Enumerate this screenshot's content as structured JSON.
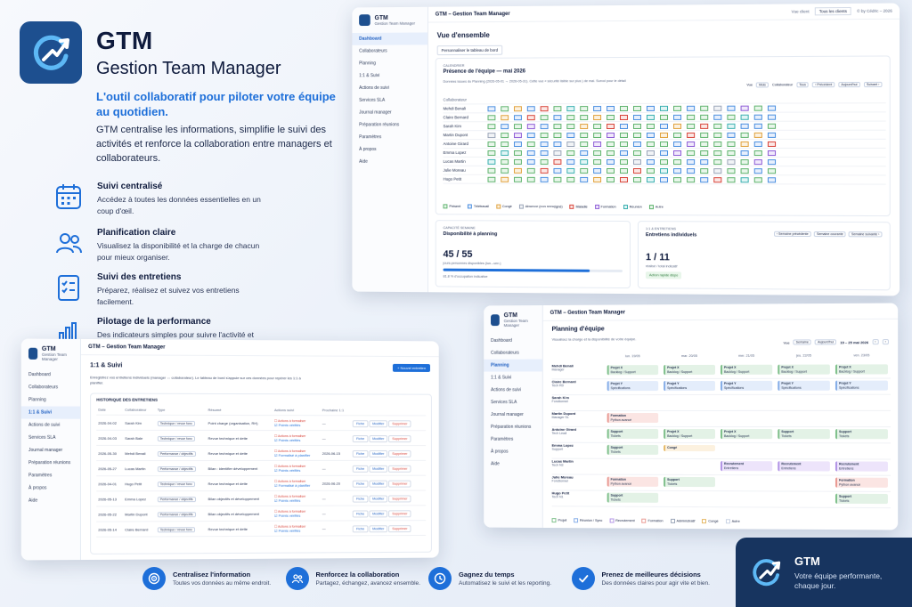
{
  "brand": {
    "name": "GTM",
    "full_name": "Gestion Team Manager",
    "tagline": "L'outil collaboratif pour piloter votre équipe au quotidien.",
    "description": "GTM centralise les informations, simplifie le suivi des activités et renforce la collaboration entre managers et collaborateurs."
  },
  "features": [
    {
      "title": "Suivi centralisé",
      "desc": "Accédez à toutes les données essentielles en un coup d'œil.",
      "icon": "calendar-icon"
    },
    {
      "title": "Planification claire",
      "desc": "Visualisez la disponibilité et la charge de chacun pour mieux organiser.",
      "icon": "users-icon"
    },
    {
      "title": "Suivi des entretiens",
      "desc": "Préparez, réalisez et suivez vos entretiens facilement.",
      "icon": "checklist-icon"
    },
    {
      "title": "Pilotage de la performance",
      "desc": "Des indicateurs simples pour suivre l'activité et prendre les bonnes décisions.",
      "icon": "bar-chart-icon"
    }
  ],
  "app": {
    "title": "GTM – Gestion Team Manager",
    "logo_name": "GTM",
    "logo_sub": "Gestion Team Manager",
    "nav": [
      "Dashboard",
      "Collaborateurs",
      "Planning",
      "1:1 & Suivi",
      "Actions de suivi",
      "Services SLA",
      "Journal manager",
      "Préparation réunions",
      "Paramètres",
      "À propos",
      "Aide"
    ]
  },
  "dashboard": {
    "header_right_label": "Vue client",
    "client_select": "Tous les clients",
    "copyright": "© by Cédric – 2026",
    "page_title": "Vue d'ensemble",
    "customize_btn": "Personnaliser le tableau de bord",
    "calendar_kicker": "CALENDRIER",
    "calendar_title": "Présence de l'équipe — mai 2026",
    "calendar_caption": "Données issues du Planning (2026-05-01 → 2026-05-31). Cette vue « sécurité lisible sur plus ) de mai. Survol pour le détail",
    "view_label": "Vue",
    "view_value": "Mois",
    "collab_label": "Collaborateur",
    "collab_value": "Tous",
    "prev_btn": "‹ Précédent",
    "today_btn": "Aujourd'hui",
    "next_btn": "Suivant ›",
    "collab_col": "Collaborateur",
    "people": [
      "Mehdi Benali",
      "Claire Bernard",
      "Sarah Kim",
      "Martin Dupont",
      "Antoine Girard",
      "Emma Lopez",
      "Lucas Martin",
      "Julie Moreau",
      "Hugo Petit"
    ],
    "legend": [
      "Présent",
      "Télétravail",
      "Congé",
      "Absence (non renseigné)",
      "Maladie",
      "Formation",
      "Réunion",
      "Autre"
    ],
    "sla_kicker": "CAPACITÉ SEMAINE",
    "sla_title": "Disponibilité à planning",
    "sla_value": "45 / 55",
    "sla_caption": "jours-personnes disponibles (lun.–ven.)",
    "sla_fill": 0.82,
    "sla_rate": "81.8 % d'occupation indicative",
    "interviews_kicker": "1:1 & ENTRETIENS",
    "interviews_title": "Entretiens individuels",
    "prev_week_btn": "‹ Semaine précédente",
    "current_week_btn": "Semaine courante",
    "next_week_btn": "Semaine suivante ›",
    "interviews_value": "1 / 11",
    "interviews_caption": "réalisé / total indicatif",
    "interviews_badge": "Action rapide dispo"
  },
  "planning": {
    "page_title": "Planning d'équipe",
    "subtitle": "Visualisez la charge et la disponibilité de votre équipe.",
    "view_label": "Vue",
    "view_value": "Semaine",
    "today_btn": "Aujourd'hui",
    "range": "19 – 25 mai 2026",
    "days": [
      "lun. 19/05",
      "mar. 20/05",
      "mer. 21/05",
      "jeu. 22/05",
      "ven. 23/05"
    ],
    "rows": [
      {
        "name": "Mehdi Benali",
        "role": "Manager"
      },
      {
        "name": "Claire Bernard",
        "role": "Tech RD"
      },
      {
        "name": "Sarah Kim",
        "role": "Fonctionnel"
      },
      {
        "name": "Martin Dupont",
        "role": "Manager SL"
      },
      {
        "name": "Antoine Girard",
        "role": "Tech Lead"
      },
      {
        "name": "Emma Lopez",
        "role": "Support"
      },
      {
        "name": "Lucas Martin",
        "role": "Tech N3"
      },
      {
        "name": "Julie Moreau",
        "role": "Fonctionnel"
      },
      {
        "name": "Hugo Petit",
        "role": "Tech N1"
      }
    ],
    "legend": [
      "Projet",
      "Réunion / Sync",
      "Recrutement",
      "Formation",
      "Administratif",
      "Congé",
      "Autre"
    ],
    "blocks": {
      "projet_x": "Projet X",
      "x_sub": "Backlog / Support",
      "projet_y": "Projet Y",
      "y_sub": "Spécifications",
      "support": "Support",
      "support_sub": "Tickets",
      "formation": "Formation",
      "formation_sub": "Python avancé",
      "recrutement": "Recrutement",
      "recrutement_sub": "Entretiens",
      "conge": "Congé"
    }
  },
  "followup": {
    "page_title": "1:1 & Suivi",
    "intro": "Enregistrez vos entretiens individuels (manager ↔ collaborateur). Le tableau de bord s'appuie sur ces données pour repérer les 1:1 à planifier.",
    "new_btn": "+ Nouvel entretien",
    "history_title": "HISTORIQUE DES ENTRETIENS",
    "columns": [
      "Date",
      "Collaborateur",
      "Type",
      "Résumé",
      "Actions suivi",
      "Prochaine 1:1",
      ""
    ],
    "rows": [
      {
        "date": "2026-04-02",
        "name": "Sarah Kim",
        "type": "Technique / revue fonc",
        "summary": "Point charge (organisation, RH)",
        "action": "Actions à formaliser",
        "done": "Points vérifiés",
        "next": "—"
      },
      {
        "date": "2026-04-03",
        "name": "Sarah Bale",
        "type": "Technique / revue fonc",
        "summary": "Revue technique et dette",
        "action": "Actions à formaliser",
        "done": "Points vérifiés",
        "next": "—"
      },
      {
        "date": "2026-05-30",
        "name": "Mehdi Benali",
        "type": "Performance / objectifs",
        "summary": "Revue technique et dette",
        "action": "Actions à formaliser",
        "done": "Formalisé à planifier",
        "next": "2026-06-15"
      },
      {
        "date": "2026-05-27",
        "name": "Lucas Martin",
        "type": "Performance / objectifs",
        "summary": "Bilan : identifier développement",
        "action": "Actions à formaliser",
        "done": "Points vérifiés",
        "next": "—"
      },
      {
        "date": "2026-04-01",
        "name": "Hugo Petit",
        "type": "Technique / revue fonc",
        "summary": "Revue technique et dette",
        "action": "Actions à formaliser",
        "done": "Formalisé à planifier",
        "next": "2026-06-20"
      },
      {
        "date": "2026-05-13",
        "name": "Emma Lopez",
        "type": "Performance / objectifs",
        "summary": "Bilan objectifs et développement",
        "action": "Actions à formaliser",
        "done": "Points vérifiés",
        "next": "—"
      },
      {
        "date": "2026-05-22",
        "name": "Martin Dupont",
        "type": "Performance / objectifs",
        "summary": "Bilan objectifs et développement",
        "action": "Actions à formaliser",
        "done": "Points vérifiés",
        "next": "—"
      },
      {
        "date": "2026-05-14",
        "name": "Claire Bernard",
        "type": "Technique / revue fonc",
        "summary": "Revue technique et dette",
        "action": "Actions à formaliser",
        "done": "Points vérifiés",
        "next": "—"
      }
    ],
    "fiche_btn": "Fiche",
    "edit_btn": "Modifier",
    "delete_btn": "Supprimer"
  },
  "benefits": [
    {
      "title": "Centralisez l'information",
      "desc": "Toutes vos données au même endroit.",
      "icon": "target-icon"
    },
    {
      "title": "Renforcez la collaboration",
      "desc": "Partagez, échangez, avancez ensemble.",
      "icon": "team-icon"
    },
    {
      "title": "Gagnez du temps",
      "desc": "Automatisez le suivi et les reporting.",
      "icon": "clock-icon"
    },
    {
      "title": "Prenez de meilleures décisions",
      "desc": "Des données claires pour agir vite et bien.",
      "icon": "check-icon"
    }
  ],
  "corner": {
    "title": "GTM",
    "desc": "Votre équipe performante, chaque jour."
  }
}
